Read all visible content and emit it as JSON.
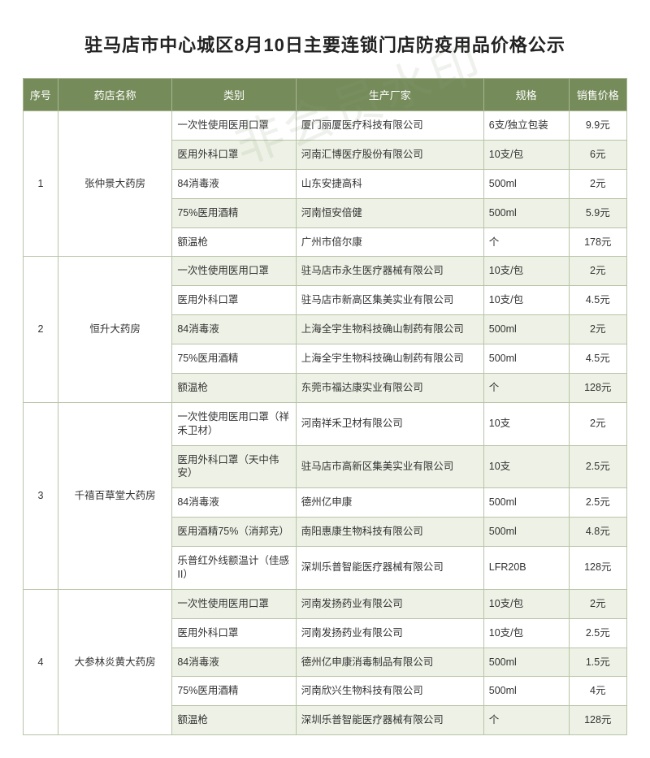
{
  "title": "驻马店市中心城区8月10日主要连锁门店防疫用品价格公示",
  "watermark": "非会员水印",
  "colors": {
    "header_bg": "#758b5a",
    "header_text": "#ffffff",
    "row_alt": "#eef2e6",
    "border": "#b8c4a6",
    "page_bg": "#ffffff"
  },
  "columns": [
    "序号",
    "药店名称",
    "类别",
    "生产厂家",
    "规格",
    "销售价格"
  ],
  "groups": [
    {
      "idx": "1",
      "name": "张仲景大药房",
      "rows": [
        {
          "category": "一次性使用医用口罩",
          "manufacturer": "厦门丽厦医疗科技有限公司",
          "spec": "6支/独立包装",
          "price": "9.9元"
        },
        {
          "category": "医用外科口罩",
          "manufacturer": "河南汇博医疗股份有限公司",
          "spec": "10支/包",
          "price": "6元"
        },
        {
          "category": "84消毒液",
          "manufacturer": "山东安捷高科",
          "spec": "500ml",
          "price": "2元"
        },
        {
          "category": "75%医用酒精",
          "manufacturer": "河南恒安倍健",
          "spec": "500ml",
          "price": "5.9元"
        },
        {
          "category": "额温枪",
          "manufacturer": "广州市倍尔康",
          "spec": "个",
          "price": "178元"
        }
      ]
    },
    {
      "idx": "2",
      "name": "恒升大药房",
      "rows": [
        {
          "category": "一次性使用医用口罩",
          "manufacturer": "驻马店市永生医疗器械有限公司",
          "spec": "10支/包",
          "price": "2元"
        },
        {
          "category": "医用外科口罩",
          "manufacturer": "驻马店市新高区集美实业有限公司",
          "spec": "10支/包",
          "price": "4.5元"
        },
        {
          "category": "84消毒液",
          "manufacturer": "上海全宇生物科技确山制药有限公司",
          "spec": "500ml",
          "price": "2元"
        },
        {
          "category": "75%医用酒精",
          "manufacturer": "上海全宇生物科技确山制药有限公司",
          "spec": "500ml",
          "price": "4.5元"
        },
        {
          "category": "额温枪",
          "manufacturer": "东莞市福达康实业有限公司",
          "spec": "个",
          "price": "128元"
        }
      ]
    },
    {
      "idx": "3",
      "name": "千禧百草堂大药房",
      "rows": [
        {
          "category": "一次性使用医用口罩（祥禾卫材）",
          "manufacturer": "河南祥禾卫材有限公司",
          "spec": "10支",
          "price": "2元"
        },
        {
          "category": "医用外科口罩（天中伟安）",
          "manufacturer": "驻马店市高新区集美实业有限公司",
          "spec": "10支",
          "price": "2.5元"
        },
        {
          "category": "84消毒液",
          "manufacturer": "德州亿申康",
          "spec": "500ml",
          "price": "2.5元"
        },
        {
          "category": "医用酒精75%（消邦克）",
          "manufacturer": "南阳惠康生物科技有限公司",
          "spec": "500ml",
          "price": "4.8元"
        },
        {
          "category": "乐普红外线额温计（佳感II）",
          "manufacturer": "深圳乐普智能医疗器械有限公司",
          "spec": "LFR20B",
          "price": "128元"
        }
      ]
    },
    {
      "idx": "4",
      "name": "大参林炎黄大药房",
      "rows": [
        {
          "category": "一次性使用医用口罩",
          "manufacturer": "河南发扬药业有限公司",
          "spec": "10支/包",
          "price": "2元"
        },
        {
          "category": "医用外科口罩",
          "manufacturer": "河南发扬药业有限公司",
          "spec": "10支/包",
          "price": "2.5元"
        },
        {
          "category": "84消毒液",
          "manufacturer": "德州亿申康消毒制品有限公司",
          "spec": "500ml",
          "price": "1.5元"
        },
        {
          "category": "75%医用酒精",
          "manufacturer": "河南欣兴生物科技有限公司",
          "spec": "500ml",
          "price": "4元"
        },
        {
          "category": "额温枪",
          "manufacturer": "深圳乐普智能医疗器械有限公司",
          "spec": "个",
          "price": "128元"
        }
      ]
    }
  ]
}
